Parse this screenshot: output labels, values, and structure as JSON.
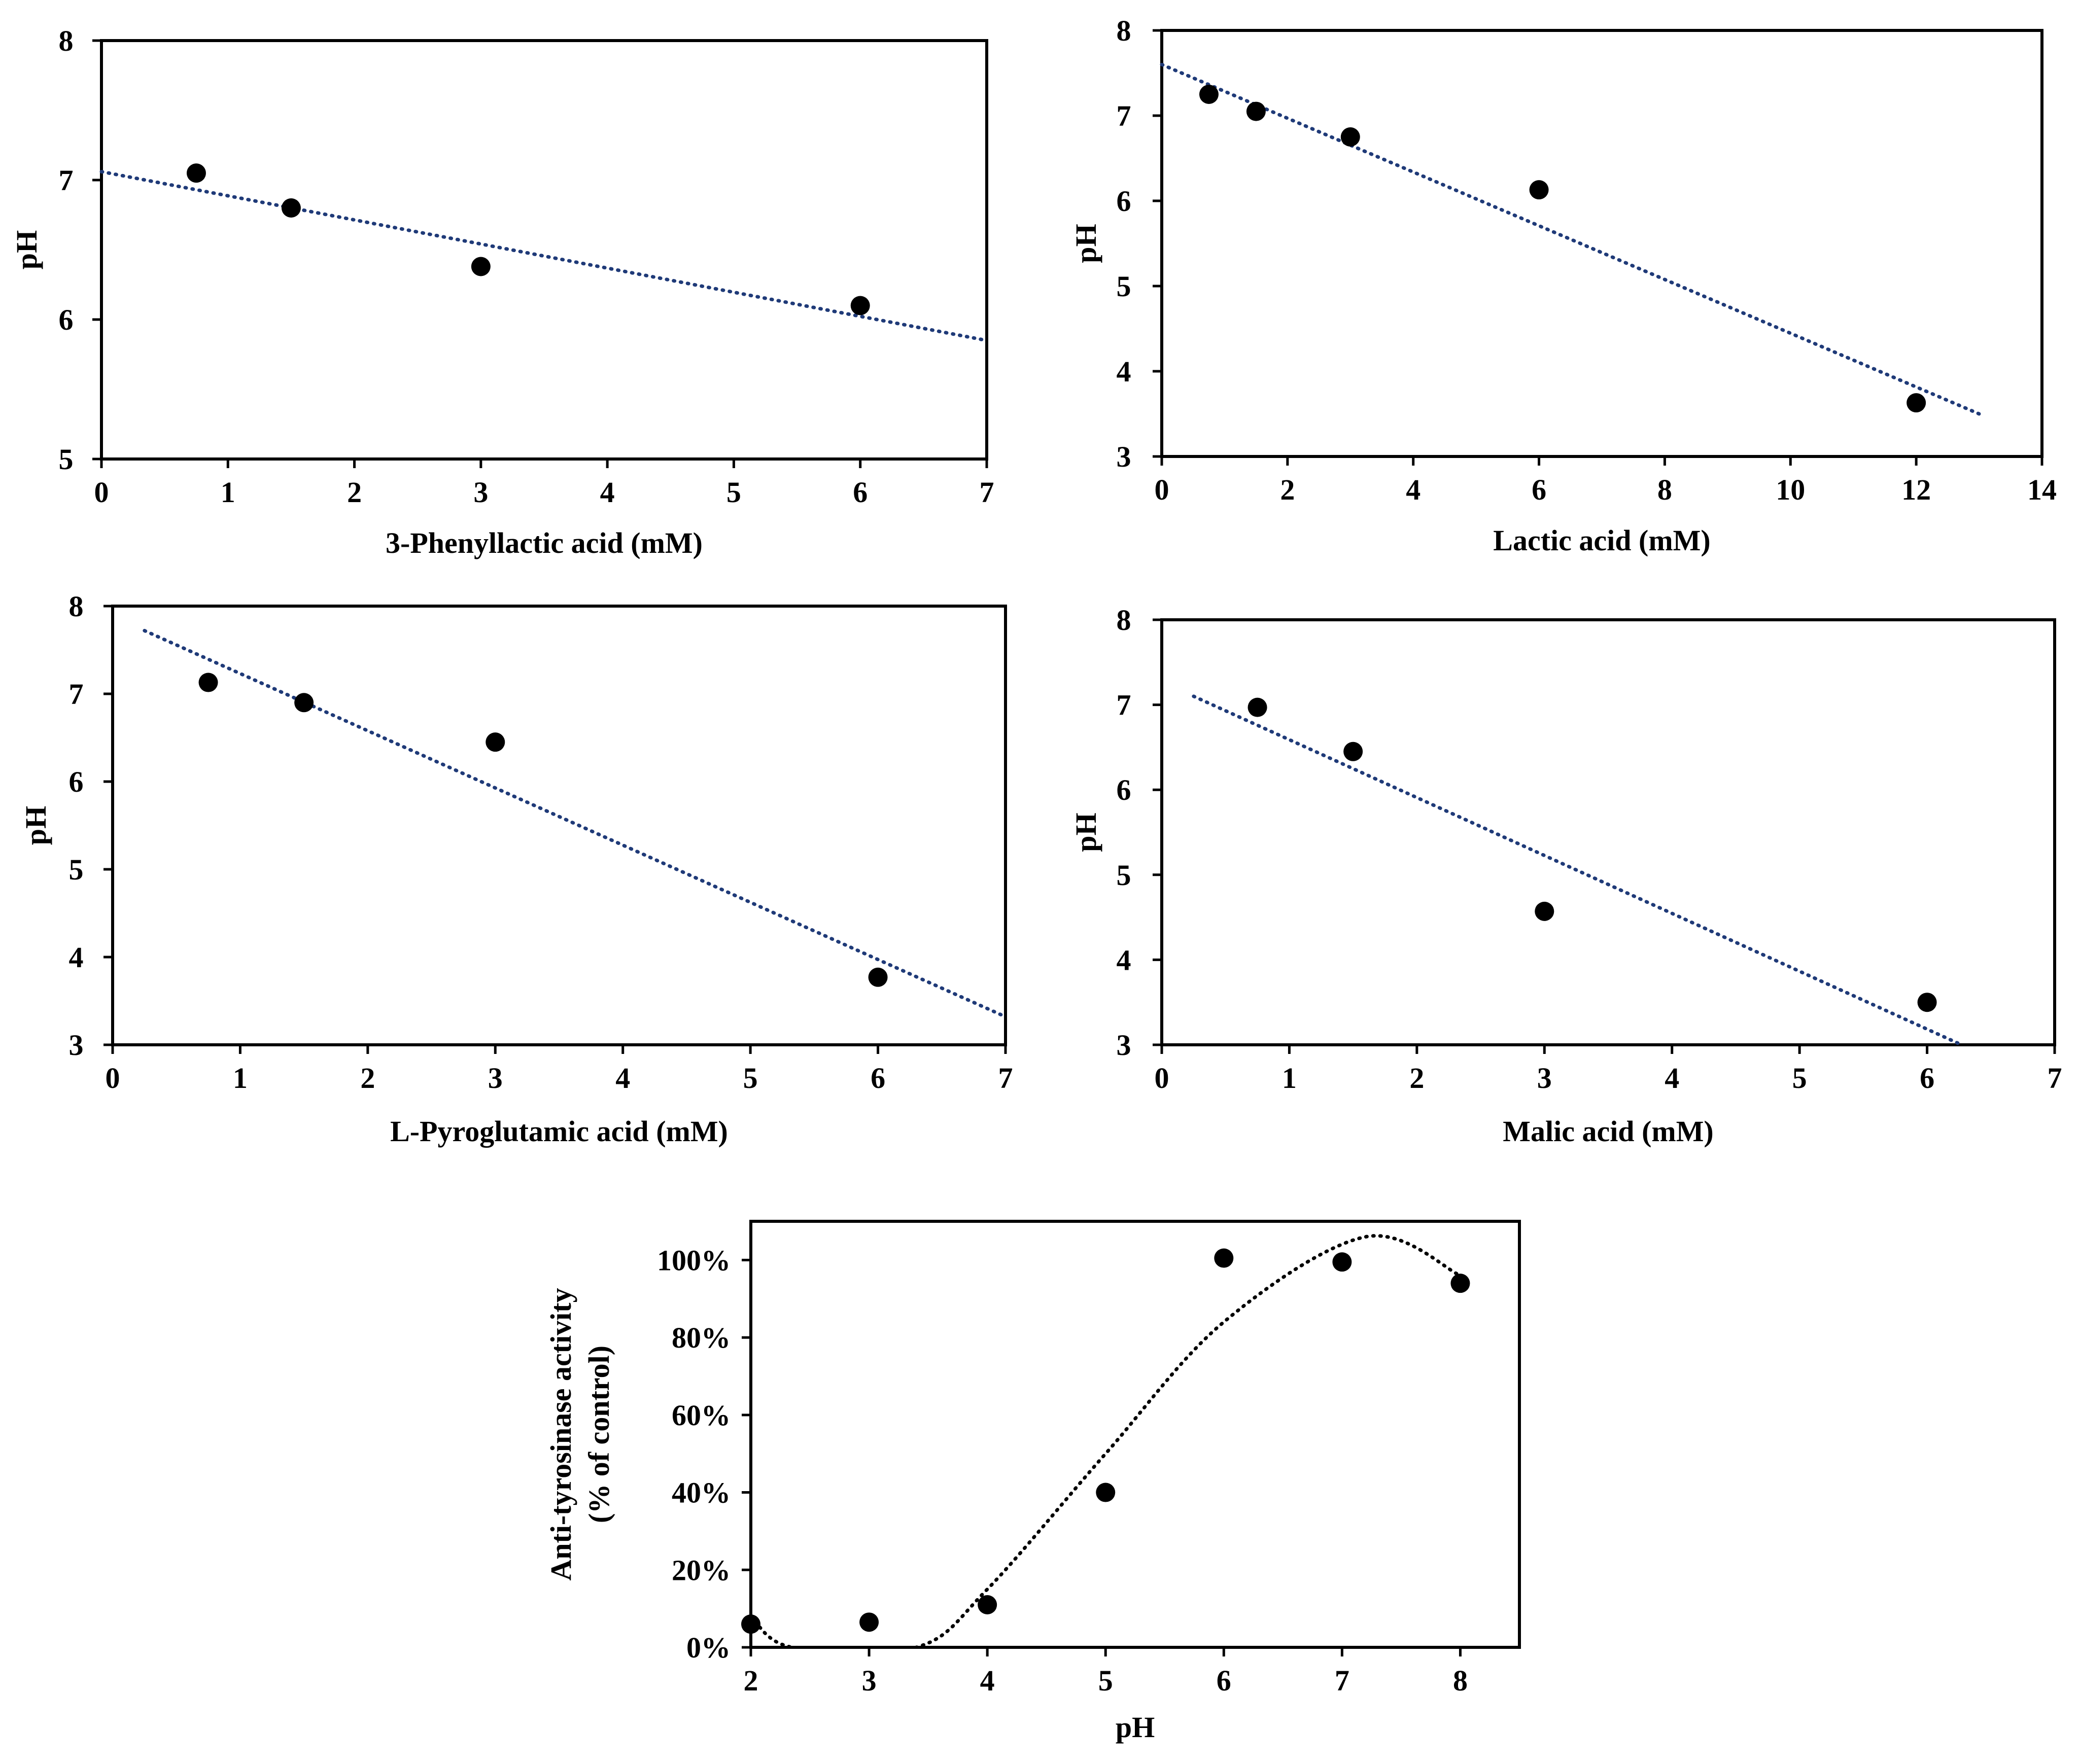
{
  "chart_data": [
    {
      "type": "scatter",
      "panel": "3-Phenyllactic acid",
      "xlabel": "3-Phenyllactic acid (mM)",
      "ylabel": "pH",
      "xlim": [
        0,
        7
      ],
      "ylim": [
        5,
        8
      ],
      "xticks": [
        "0",
        "1",
        "2",
        "3",
        "4",
        "5",
        "6",
        "7"
      ],
      "yticks": [
        "5",
        "6",
        "7",
        "8"
      ],
      "x": [
        0.75,
        1.5,
        3,
        6
      ],
      "y": [
        7.05,
        6.8,
        6.38,
        6.1
      ],
      "trendline": {
        "type": "linear",
        "x_range": [
          0,
          7
        ],
        "y_start": 7.06,
        "y_end": 5.85
      },
      "marker_color": "#000000",
      "trend_color": "#1f3a78"
    },
    {
      "type": "scatter",
      "panel": "Lactic acid",
      "xlabel": "Lactic acid (mM)",
      "ylabel": "pH",
      "xlim": [
        0,
        14
      ],
      "ylim": [
        3,
        8
      ],
      "xticks": [
        "0",
        "2",
        "4",
        "6",
        "8",
        "10",
        "12",
        "14"
      ],
      "yticks": [
        "3",
        "4",
        "5",
        "6",
        "7",
        "8"
      ],
      "x": [
        0.75,
        1.5,
        3,
        6,
        12
      ],
      "y": [
        7.25,
        7.05,
        6.75,
        6.13,
        3.63
      ],
      "trendline": {
        "type": "linear",
        "x_range": [
          0,
          13
        ],
        "y_start": 7.6,
        "y_end": 3.5
      },
      "marker_color": "#000000",
      "trend_color": "#1f3a78"
    },
    {
      "type": "scatter",
      "panel": "L-Pyroglutamic acid",
      "xlabel": "L-Pyroglutamic acid (mM)",
      "ylabel": "pH",
      "xlim": [
        0,
        7
      ],
      "ylim": [
        3,
        8
      ],
      "xticks": [
        "0",
        "1",
        "2",
        "3",
        "4",
        "5",
        "6",
        "7"
      ],
      "yticks": [
        "3",
        "4",
        "5",
        "6",
        "7",
        "8"
      ],
      "x": [
        0.75,
        1.5,
        3,
        6
      ],
      "y": [
        7.13,
        6.9,
        6.45,
        3.77
      ],
      "trendline": {
        "type": "linear",
        "x_range": [
          0.25,
          7
        ],
        "y_start": 7.72,
        "y_end": 3.32
      },
      "marker_color": "#000000",
      "trend_color": "#1f3a78"
    },
    {
      "type": "scatter",
      "panel": "Malic acid",
      "xlabel": "Malic acid (mM)",
      "ylabel": "pH",
      "xlim": [
        0,
        7
      ],
      "ylim": [
        3,
        8
      ],
      "xticks": [
        "0",
        "1",
        "2",
        "3",
        "4",
        "5",
        "6",
        "7"
      ],
      "yticks": [
        "3",
        "4",
        "5",
        "6",
        "7",
        "8"
      ],
      "x": [
        0.75,
        1.5,
        3,
        6
      ],
      "y": [
        6.97,
        6.45,
        4.57,
        3.5
      ],
      "trendline": {
        "type": "linear",
        "x_range": [
          0.25,
          6.27
        ],
        "y_start": 7.1,
        "y_end": 3.0
      },
      "marker_color": "#000000",
      "trend_color": "#1f3a78"
    },
    {
      "type": "scatter",
      "panel": "pH vs anti-tyrosinase",
      "xlabel": "pH",
      "ylabel": "Anti-tyrosinase activity",
      "ylabel2": "(% of control)",
      "xlim": [
        2,
        8.5
      ],
      "ylim": [
        0,
        1.1
      ],
      "xticks": [
        "2",
        "3",
        "4",
        "5",
        "6",
        "7",
        "8"
      ],
      "yticks": [
        "0%",
        "20%",
        "40%",
        "60%",
        "80%",
        "100%"
      ],
      "x": [
        2,
        3,
        4,
        5,
        6,
        7,
        8
      ],
      "y": [
        0.06,
        0.065,
        0.11,
        0.4,
        1.005,
        0.995,
        0.94
      ],
      "trendline": {
        "type": "polynomial",
        "order": 3,
        "curve_x": [
          2.0,
          2.35,
          3.4,
          4.0,
          5.0,
          6.0,
          7.2,
          8.0
        ],
        "curve_y": [
          0.08,
          0.0,
          0.0,
          0.15,
          0.5,
          0.84,
          1.06,
          0.96
        ]
      },
      "marker_color": "#000000",
      "trend_color": "#000000"
    }
  ]
}
